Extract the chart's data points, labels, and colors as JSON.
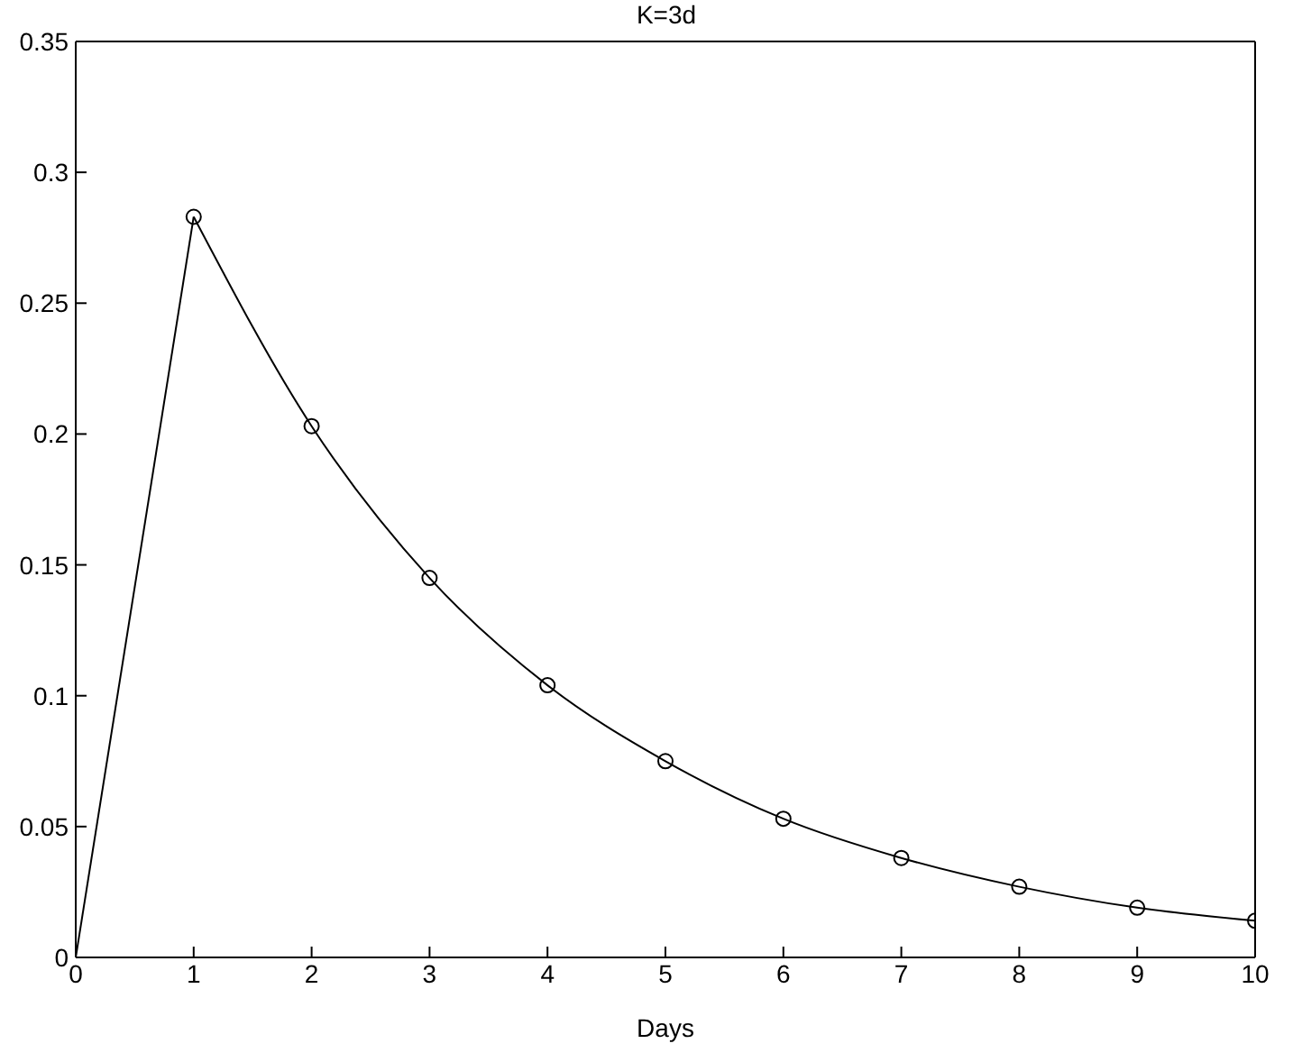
{
  "chart_data": {
    "type": "line",
    "title": "K=3d",
    "xlabel": "Days",
    "xlim": [
      0,
      10
    ],
    "xticks": [
      0,
      1,
      2,
      3,
      4,
      5,
      6,
      7,
      8,
      9,
      10
    ],
    "ylim": [
      0,
      0.35
    ],
    "yticks": [
      0,
      0.05,
      0.1,
      0.15,
      0.2,
      0.25,
      0.3,
      0.35
    ],
    "grid": false,
    "legend": false,
    "series": [
      {
        "color": "#000000",
        "x": [
          0,
          1
        ],
        "values": [
          0,
          0.283
        ]
      },
      {
        "color": "#000000",
        "marker": "circle",
        "x": [
          1,
          2,
          3,
          4,
          5,
          6,
          7,
          8,
          9,
          10
        ],
        "values": [
          0.283,
          0.203,
          0.145,
          0.104,
          0.075,
          0.053,
          0.038,
          0.027,
          0.019,
          0.014
        ]
      }
    ]
  }
}
